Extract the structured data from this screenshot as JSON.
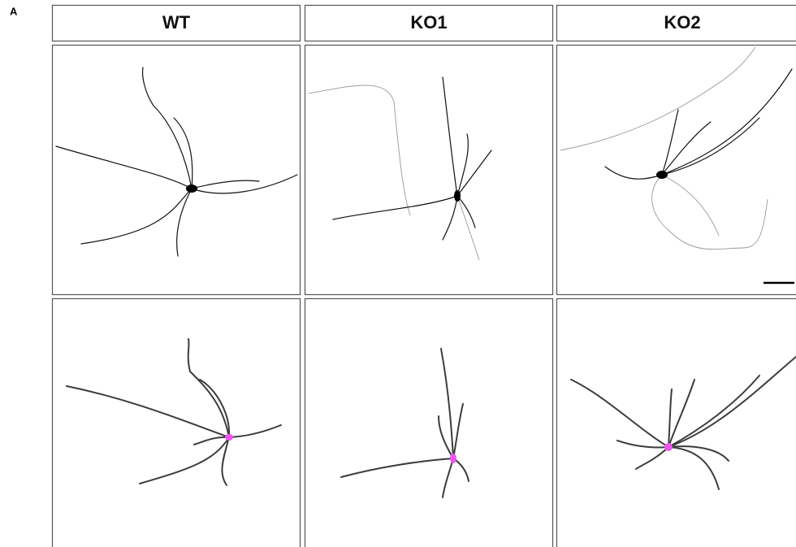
{
  "panel_label": "A",
  "columns": [
    {
      "label": "WT"
    },
    {
      "label": "KO1"
    },
    {
      "label": "KO2"
    }
  ]
}
